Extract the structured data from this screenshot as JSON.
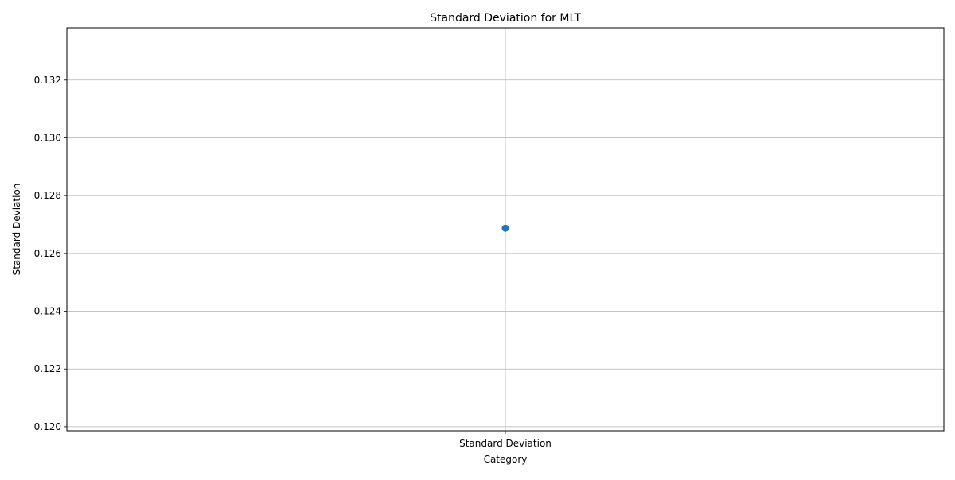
{
  "chart_data": {
    "type": "scatter",
    "title": "Standard Deviation for MLT",
    "xlabel": "Category",
    "ylabel": "Standard Deviation",
    "categories": [
      "Standard Deviation"
    ],
    "series": [
      {
        "values": [
          0.12687
        ]
      }
    ],
    "ylim": [
      0.11986,
      0.13381
    ],
    "yticks": [
      0.12,
      0.122,
      0.124,
      0.126,
      0.128,
      0.13,
      0.132
    ],
    "ytick_labels": [
      "0.120",
      "0.122",
      "0.124",
      "0.126",
      "0.128",
      "0.130",
      "0.132"
    ],
    "grid": true,
    "legend": "none",
    "colors": {
      "marker": "#1f77b4",
      "grid": "#b0b0b0",
      "axes": "#000000"
    }
  }
}
